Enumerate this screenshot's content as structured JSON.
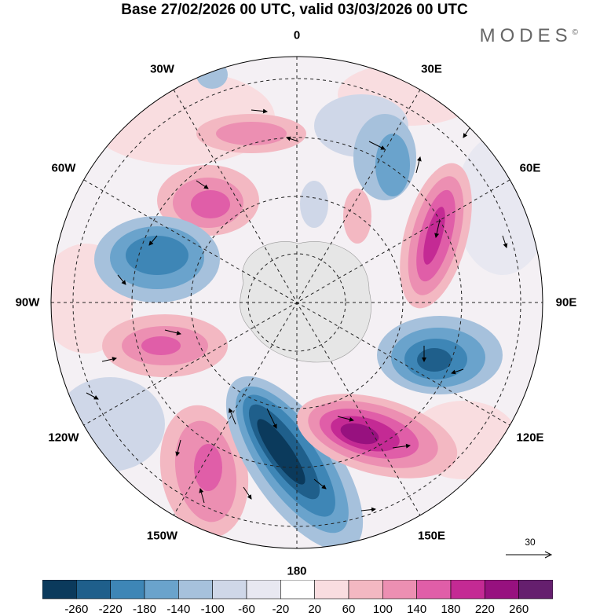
{
  "title": "Base 27/02/2026 00 UTC, valid 03/03/2026 00 UTC",
  "brand": "MODES",
  "brand_mark": "©",
  "longitude_labels": [
    {
      "key": "lon-0",
      "text": "0",
      "deg": 0
    },
    {
      "key": "lon-30e",
      "text": "30E",
      "deg": 30
    },
    {
      "key": "lon-60e",
      "text": "60E",
      "deg": 60
    },
    {
      "key": "lon-90e",
      "text": "90E",
      "deg": 90
    },
    {
      "key": "lon-120e",
      "text": "120E",
      "deg": 120
    },
    {
      "key": "lon-150e",
      "text": "150E",
      "deg": 150
    },
    {
      "key": "lon-180",
      "text": "180",
      "deg": 180
    },
    {
      "key": "lon-150w",
      "text": "150W",
      "deg": 210
    },
    {
      "key": "lon-120w",
      "text": "120W",
      "deg": 240
    },
    {
      "key": "lon-90w",
      "text": "90W",
      "deg": 270
    },
    {
      "key": "lon-60w",
      "text": "60W",
      "deg": 300
    },
    {
      "key": "lon-30w",
      "text": "30W",
      "deg": 330
    }
  ],
  "vector_reference": {
    "value": "30",
    "icon": "arrow-right-icon"
  },
  "colorbar": {
    "colors": [
      "#0b3a5c",
      "#1f5f8b",
      "#3e86b6",
      "#6aa3cc",
      "#a6c1dc",
      "#cfd7e8",
      "#e8e8f1",
      "#ffffff",
      "#f9dde0",
      "#f3b8c2",
      "#ec8fb2",
      "#e05ea8",
      "#c42a94",
      "#97117f",
      "#651f6e"
    ],
    "ticks": [
      "-260",
      "-220",
      "-180",
      "-140",
      "-100",
      "-60",
      "-20",
      "20",
      "60",
      "100",
      "140",
      "180",
      "220",
      "260"
    ]
  }
}
